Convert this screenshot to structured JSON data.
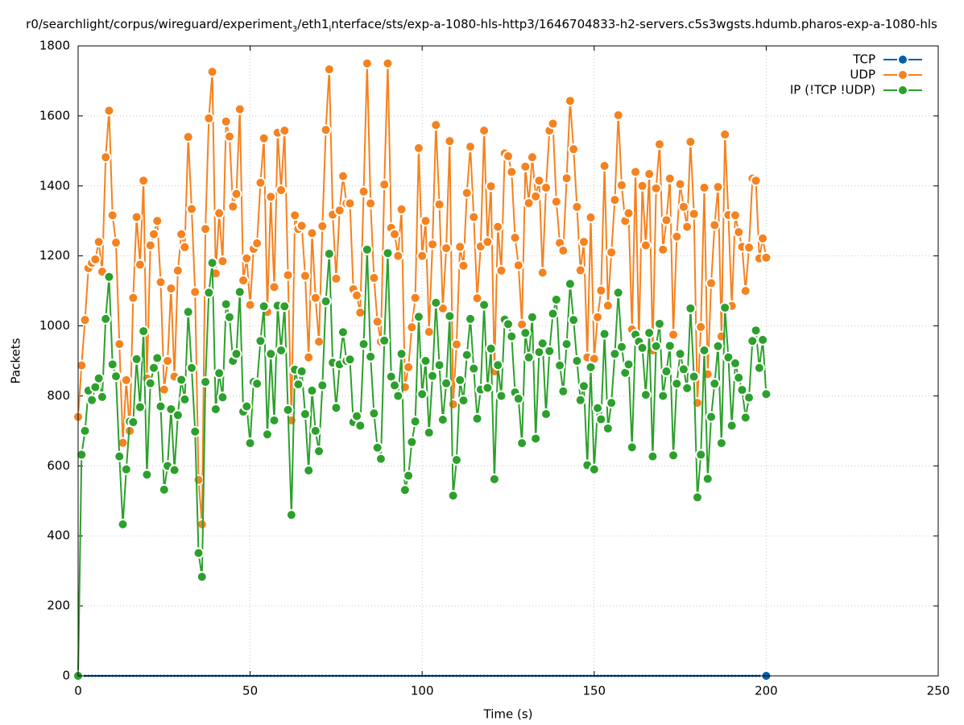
{
  "chart_data": {
    "type": "line",
    "title": [
      "r0/searchlight/corpus/wireguard/experiment",
      "3",
      "/eth1",
      "i",
      "nterface/sts/exp-a-1080-hls-http3/1646704833-h2-servers.c5s3wgsts.hdumb.pharos-exp-a-1080-hls"
    ],
    "x_label": "Time (s)",
    "y_label": "Packets",
    "xlim": [
      0,
      250
    ],
    "xticks": [
      0,
      50,
      100,
      150,
      200,
      250
    ],
    "ylim": [
      0,
      1800
    ],
    "yticks": [
      0,
      200,
      400,
      600,
      800,
      1000,
      1200,
      1400,
      1600,
      1800
    ],
    "grid": true,
    "legend": "top-right",
    "x": [
      0,
      1,
      2,
      3,
      4,
      5,
      6,
      7,
      8,
      9,
      10,
      11,
      12,
      13,
      14,
      15,
      16,
      17,
      18,
      19,
      20,
      21,
      22,
      23,
      24,
      25,
      26,
      27,
      28,
      29,
      30,
      31,
      32,
      33,
      34,
      35,
      36,
      37,
      38,
      39,
      40,
      41,
      42,
      43,
      44,
      45,
      46,
      47,
      48,
      49,
      50,
      51,
      52,
      53,
      54,
      55,
      56,
      57,
      58,
      59,
      60,
      61,
      62,
      63,
      64,
      65,
      66,
      67,
      68,
      69,
      70,
      71,
      72,
      73,
      74,
      75,
      76,
      77,
      78,
      79,
      80,
      81,
      82,
      83,
      84,
      85,
      86,
      87,
      88,
      89,
      90,
      91,
      92,
      93,
      94,
      95,
      96,
      97,
      98,
      99,
      100,
      101,
      102,
      103,
      104,
      105,
      106,
      107,
      108,
      109,
      110,
      111,
      112,
      113,
      114,
      115,
      116,
      117,
      118,
      119,
      120,
      121,
      122,
      123,
      124,
      125,
      126,
      127,
      128,
      129,
      130,
      131,
      132,
      133,
      134,
      135,
      136,
      137,
      138,
      139,
      140,
      141,
      142,
      143,
      144,
      145,
      146,
      147,
      148,
      149,
      150,
      151,
      152,
      153,
      154,
      155,
      156,
      157,
      158,
      159,
      160,
      161,
      162,
      163,
      164,
      165,
      166,
      167,
      168,
      169,
      170,
      171,
      172,
      173,
      174,
      175,
      176,
      177,
      178,
      179,
      180,
      181,
      182,
      183,
      184,
      185,
      186,
      187,
      188,
      189,
      190,
      191,
      192,
      193,
      194,
      195,
      196,
      197,
      198,
      199,
      200
    ],
    "series": [
      {
        "name": "TCP",
        "color": "#0060ad",
        "values": [
          0,
          0,
          0,
          0,
          0,
          0,
          0,
          0,
          0,
          0,
          0,
          0,
          0,
          0,
          0,
          0,
          0,
          0,
          0,
          0,
          0,
          0,
          0,
          0,
          0,
          0,
          0,
          0,
          0,
          0,
          0,
          0,
          0,
          0,
          0,
          0,
          0,
          0,
          0,
          0,
          0,
          0,
          0,
          0,
          0,
          0,
          0,
          0,
          0,
          0,
          0,
          0,
          0,
          0,
          0,
          0,
          0,
          0,
          0,
          0,
          0,
          0,
          0,
          0,
          0,
          0,
          0,
          0,
          0,
          0,
          0,
          0,
          0,
          0,
          0,
          0,
          0,
          0,
          0,
          0,
          0,
          0,
          0,
          0,
          0,
          0,
          0,
          0,
          0,
          0,
          0,
          0,
          0,
          0,
          0,
          0,
          0,
          0,
          0,
          0,
          0,
          0,
          0,
          0,
          0,
          0,
          0,
          0,
          0,
          0,
          0,
          0,
          0,
          0,
          0,
          0,
          0,
          0,
          0,
          0,
          0,
          0,
          0,
          0,
          0,
          0,
          0,
          0,
          0,
          0,
          0,
          0,
          0,
          0,
          0,
          0,
          0,
          0,
          0,
          0,
          0,
          0,
          0,
          0,
          0,
          0,
          0,
          0,
          0,
          0,
          0,
          0,
          0,
          0,
          0,
          0,
          0,
          0,
          0,
          0,
          0,
          0,
          0,
          0,
          0,
          0,
          0,
          0,
          0,
          0,
          0,
          0,
          0,
          0,
          0,
          0,
          0,
          0,
          0,
          0,
          0,
          0,
          0,
          0,
          0,
          0,
          0,
          0,
          0,
          0,
          0,
          0,
          0,
          0,
          0,
          0,
          0,
          0,
          0,
          0,
          0
        ]
      },
      {
        "name": "UDP",
        "color": "#f5821f",
        "values": [
          740,
          887,
          1017,
          1165,
          1180,
          1190,
          1240,
          1155,
          1482,
          1615,
          1316,
          1238,
          948,
          666,
          845,
          700,
          1080,
          1311,
          1175,
          1415,
          850,
          1230,
          1262,
          1300,
          1125,
          818,
          900,
          1107,
          855,
          1158,
          1262,
          1225,
          1540,
          1334,
          1097,
          560,
          433,
          1277,
          1593,
          1726,
          1150,
          1322,
          1185,
          1584,
          1541,
          1341,
          1377,
          1619,
          1130,
          1193,
          1060,
          1220,
          1236,
          1409,
          1536,
          1040,
          1369,
          1111,
          1552,
          1388,
          1558,
          1145,
          730,
          1316,
          1277,
          1286,
          1143,
          910,
          1265,
          1080,
          955,
          1285,
          1560,
          1733,
          1318,
          1135,
          1330,
          1428,
          1350,
          1350,
          1105,
          1087,
          1038,
          1384,
          1750,
          1350,
          1137,
          1012,
          955,
          1404,
          1750,
          1280,
          1262,
          1200,
          1333,
          825,
          882,
          996,
          1080,
          1508,
          1200,
          1300,
          983,
          1233,
          1574,
          1347,
          1050,
          1222,
          1528,
          776,
          947,
          1226,
          1172,
          1380,
          1512,
          1311,
          1079,
          1227,
          1558,
          1240,
          1399,
          870,
          1283,
          1158,
          1493,
          1485,
          1440,
          1252,
          1173,
          1004,
          1455,
          1351,
          1482,
          1370,
          1415,
          1152,
          1395,
          1558,
          1578,
          1355,
          1237,
          1215,
          1422,
          1643,
          1505,
          1340,
          1159,
          1240,
          910,
          1310,
          906,
          1025,
          1101,
          1457,
          1058,
          1210,
          1360,
          1602,
          1402,
          1300,
          1322,
          990,
          1440,
          956,
          1400,
          1230,
          1434,
          930,
          1393,
          1519,
          1218,
          1302,
          1421,
          975,
          1255,
          1405,
          1340,
          1283,
          1526,
          1320,
          780,
          997,
          1395,
          862,
          1122,
          1288,
          1397,
          970,
          1547,
          1317,
          1057,
          1316,
          1268,
          1226,
          1100,
          1224,
          1421,
          1415,
          1193,
          1250,
          1195
        ]
      },
      {
        "name": "IP (!TCP  !UDP)",
        "color": "#2ca02c",
        "values": [
          0,
          632,
          700,
          815,
          788,
          825,
          850,
          797,
          1020,
          1140,
          890,
          856,
          627,
          433,
          590,
          727,
          725,
          905,
          768,
          985,
          575,
          836,
          880,
          908,
          770,
          532,
          600,
          762,
          588,
          745,
          846,
          790,
          1040,
          880,
          698,
          351,
          283,
          840,
          1095,
          1180,
          762,
          865,
          796,
          1062,
          1025,
          900,
          920,
          1097,
          755,
          770,
          665,
          840,
          835,
          957,
          1056,
          690,
          920,
          730,
          1058,
          930,
          1056,
          760,
          460,
          875,
          833,
          870,
          748,
          587,
          815,
          700,
          642,
          830,
          1070,
          1206,
          895,
          766,
          890,
          982,
          900,
          904,
          725,
          742,
          715,
          948,
          1218,
          912,
          750,
          652,
          620,
          958,
          1208,
          855,
          830,
          800,
          920,
          531,
          572,
          668,
          727,
          1026,
          805,
          900,
          695,
          857,
          1066,
          888,
          732,
          836,
          1028,
          515,
          617,
          845,
          787,
          917,
          1020,
          878,
          735,
          818,
          1060,
          823,
          935,
          562,
          888,
          800,
          1018,
          1005,
          970,
          810,
          792,
          665,
          980,
          910,
          1025,
          678,
          925,
          950,
          748,
          928,
          1035,
          1075,
          887,
          813,
          948,
          1120,
          1017,
          900,
          788,
          828,
          602,
          882,
          590,
          765,
          733,
          977,
          707,
          780,
          920,
          1095,
          940,
          866,
          890,
          653,
          975,
          955,
          937,
          803,
          980,
          627,
          942,
          1006,
          800,
          870,
          943,
          630,
          835,
          920,
          876,
          822,
          1050,
          855,
          510,
          632,
          930,
          563,
          740,
          835,
          942,
          665,
          1052,
          910,
          715,
          893,
          852,
          817,
          738,
          795,
          957,
          987,
          880,
          960,
          805
        ]
      }
    ]
  }
}
